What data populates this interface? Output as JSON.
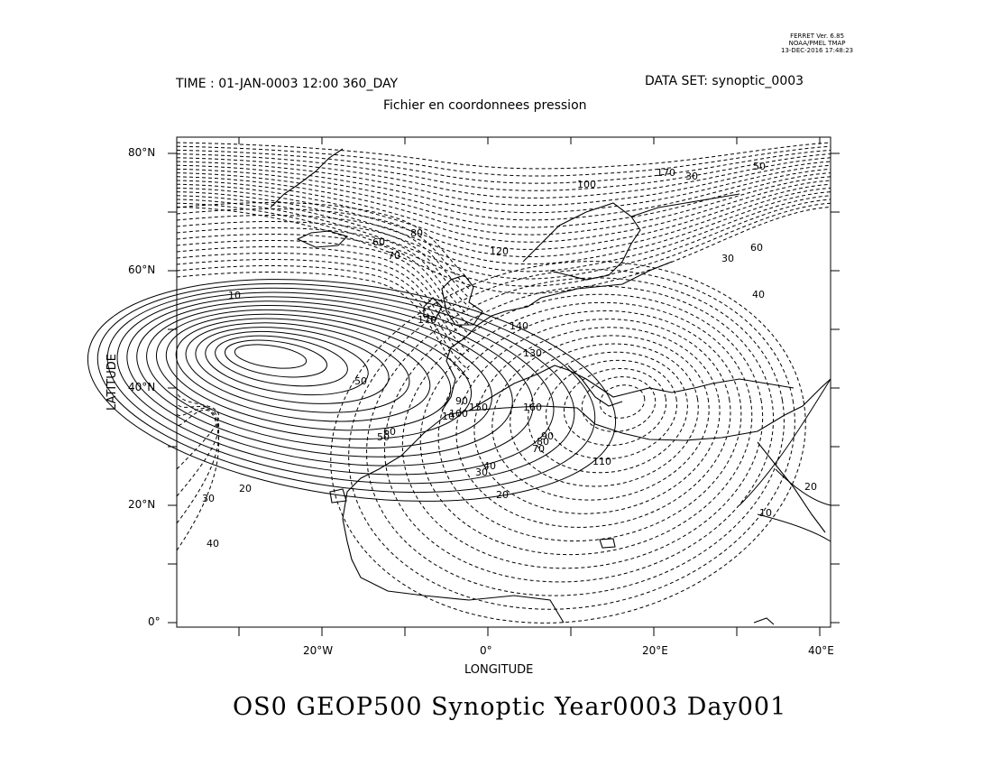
{
  "ferret_info": {
    "version": "FERRET Ver. 6.85",
    "org": "NOAA/PMEL TMAP",
    "timestamp": "13-DEC-2016 17:48:23"
  },
  "header": {
    "time": "TIME : 01-JAN-0003 12:00 360_DAY",
    "dataset": "DATA SET: synoptic_0003",
    "subtitle": "Fichier en coordonnees pression"
  },
  "axes": {
    "xlabel": "LONGITUDE",
    "ylabel": "LATITUDE",
    "x_ticks": [
      "20°W",
      "0°",
      "20°E",
      "40°E"
    ],
    "y_ticks": [
      "0°",
      "20°N",
      "40°N",
      "60°N",
      "80°N"
    ],
    "lon_range": [
      -37,
      41
    ],
    "lat_range": [
      -1,
      83
    ]
  },
  "contour_labels": [
    "10",
    "20",
    "30",
    "40",
    "50",
    "60",
    "70",
    "80",
    "90",
    "100",
    "110",
    "120",
    "130",
    "140",
    "150",
    "160",
    "170",
    "10",
    "20",
    "30",
    "40",
    "50",
    "60",
    "70",
    "80",
    "90",
    "100",
    "10",
    "20",
    "30",
    "170",
    "50",
    "60",
    "40",
    "30"
  ],
  "footer": {
    "title": "OS0 GEOP500 Synoptic Year0003 Day001"
  }
}
